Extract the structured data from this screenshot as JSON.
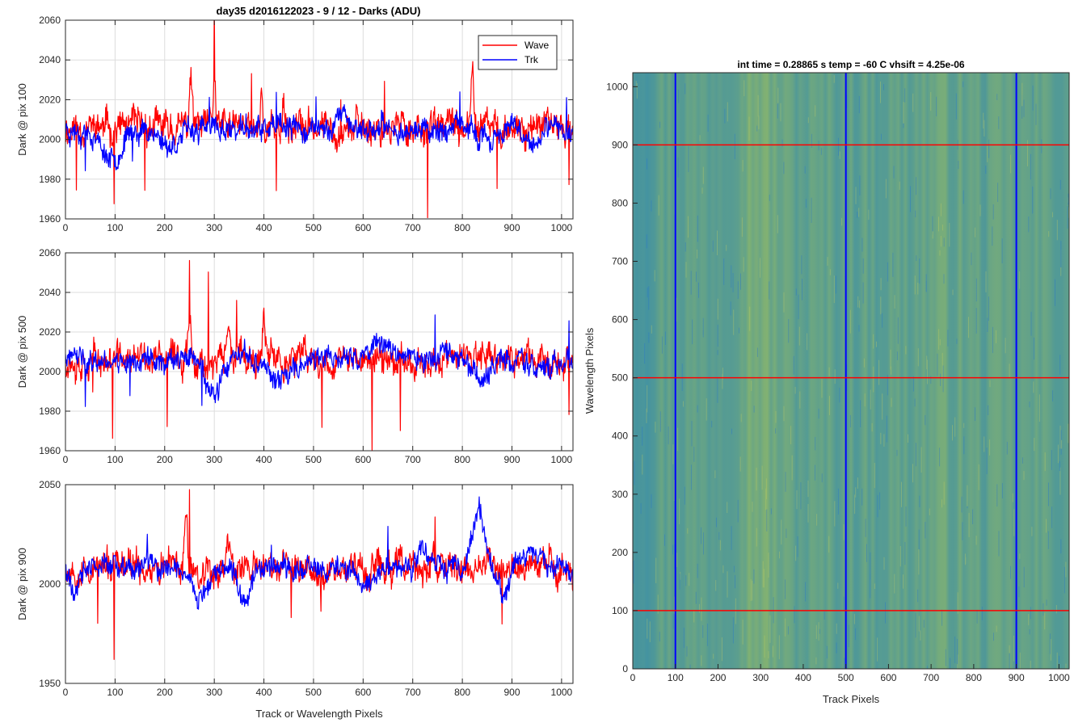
{
  "figure": {
    "suptitle": "day35 d2016122023 - 9 / 12 - Darks (ADU)",
    "shared_xlabel": "Track or Wavelength Pixels"
  },
  "colors": {
    "wave": "#ff0000",
    "trk": "#0000ff",
    "grid": "#dddddd",
    "axis": "#262626"
  },
  "chart_data": [
    {
      "type": "line",
      "ylabel": "Dark @ pix 100",
      "xlim": [
        0,
        1023
      ],
      "ylim": [
        1960,
        2060
      ],
      "xticks": [
        0,
        100,
        200,
        300,
        400,
        500,
        600,
        700,
        800,
        900,
        1000
      ],
      "yticks": [
        1960,
        1980,
        2000,
        2020,
        2040,
        2060
      ],
      "grid": true,
      "legend": {
        "location": "top-right",
        "entries": [
          "Wave",
          "Trk"
        ]
      },
      "series": [
        {
          "name": "Wave",
          "color": "#ff0000",
          "mean": 2006,
          "noise": 7,
          "seed": 11,
          "features": [
            [
              253,
              4,
              26
            ],
            [
              300,
              3,
              30
            ],
            [
              395,
              3,
              18
            ],
            [
              440,
              4,
              14
            ],
            [
              820,
              3,
              30
            ]
          ],
          "spikes": [
            [
              22,
              -30
            ],
            [
              98,
              -32
            ],
            [
              160,
              -36
            ],
            [
              300,
              36
            ],
            [
              375,
              27
            ],
            [
              425,
              -33
            ],
            [
              555,
              26
            ],
            [
              643,
              25
            ],
            [
              730,
              -40
            ],
            [
              870,
              -40
            ],
            [
              1015,
              -24
            ]
          ]
        },
        {
          "name": "Trk",
          "color": "#0000ff",
          "mean": 2005,
          "noise": 5,
          "seed": 23,
          "features": [
            [
              92,
              30,
              -14
            ],
            [
              210,
              25,
              -8
            ],
            [
              560,
              18,
              8
            ],
            [
              850,
              20,
              -6
            ],
            [
              940,
              22,
              -8
            ]
          ],
          "spikes": [
            [
              40,
              -16
            ],
            [
              135,
              -18
            ],
            [
              290,
              16
            ],
            [
              425,
              14
            ],
            [
              505,
              13
            ],
            [
              795,
              15
            ],
            [
              1010,
              20
            ]
          ]
        }
      ]
    },
    {
      "type": "line",
      "ylabel": "Dark @ pix 500",
      "xlim": [
        0,
        1023
      ],
      "ylim": [
        1960,
        2060
      ],
      "xticks": [
        0,
        100,
        200,
        300,
        400,
        500,
        600,
        700,
        800,
        900,
        1000
      ],
      "yticks": [
        1960,
        1980,
        2000,
        2020,
        2040,
        2060
      ],
      "grid": true,
      "series": [
        {
          "name": "Wave",
          "color": "#ff0000",
          "mean": 2006,
          "noise": 7,
          "seed": 37,
          "features": [
            [
              250,
              6,
              20
            ],
            [
              330,
              4,
              18
            ],
            [
              400,
              4,
              16
            ]
          ],
          "spikes": [
            [
              55,
              -25
            ],
            [
              95,
              -38
            ],
            [
              205,
              -34
            ],
            [
              250,
              30
            ],
            [
              288,
              40
            ],
            [
              345,
              30
            ],
            [
              517,
              -32
            ],
            [
              618,
              -38
            ],
            [
              675,
              -35
            ],
            [
              1015,
              -28
            ]
          ]
        },
        {
          "name": "Trk",
          "color": "#0000ff",
          "mean": 2006,
          "noise": 5,
          "seed": 41,
          "features": [
            [
              300,
              20,
              -20
            ],
            [
              430,
              25,
              -12
            ],
            [
              640,
              40,
              8
            ],
            [
              840,
              22,
              -12
            ],
            [
              960,
              25,
              -6
            ]
          ],
          "spikes": [
            [
              40,
              -22
            ],
            [
              130,
              -14
            ],
            [
              275,
              -20
            ],
            [
              745,
              22
            ],
            [
              1015,
              18
            ]
          ]
        }
      ]
    },
    {
      "type": "line",
      "ylabel": "Dark @ pix 900",
      "xlim": [
        0,
        1023
      ],
      "ylim": [
        1950,
        2050
      ],
      "xticks": [
        0,
        100,
        200,
        300,
        400,
        500,
        600,
        700,
        800,
        900,
        1000
      ],
      "yticks": [
        1950,
        2000,
        2050
      ],
      "grid": true,
      "series": [
        {
          "name": "Wave",
          "color": "#ff0000",
          "mean": 2008,
          "noise": 7,
          "seed": 53,
          "features": [
            [
              243,
              4,
              30
            ],
            [
              330,
              5,
              16
            ]
          ],
          "spikes": [
            [
              65,
              -28
            ],
            [
              98,
              -42
            ],
            [
              250,
              40
            ],
            [
              455,
              -25
            ],
            [
              515,
              -20
            ],
            [
              745,
              15
            ],
            [
              880,
              -34
            ]
          ]
        },
        {
          "name": "Trk",
          "color": "#0000ff",
          "mean": 2008,
          "noise": 5,
          "seed": 61,
          "features": [
            [
              20,
              12,
              -14
            ],
            [
              270,
              22,
              -14
            ],
            [
              360,
              16,
              -18
            ],
            [
              605,
              20,
              -10
            ],
            [
              720,
              25,
              6
            ],
            [
              835,
              18,
              30
            ],
            [
              880,
              15,
              -14
            ],
            [
              950,
              45,
              6
            ]
          ],
          "spikes": [
            [
              165,
              14
            ],
            [
              415,
              12
            ],
            [
              650,
              16
            ]
          ]
        }
      ]
    },
    {
      "type": "heatmap",
      "title": "int time = 0.28865 s    temp = -60 C    vhsift = 4.25e-06",
      "xlabel": "Track Pixels",
      "ylabel": "Wavelength Pixels",
      "xlim": [
        0,
        1024
      ],
      "ylim": [
        0,
        1024
      ],
      "xticks": [
        0,
        100,
        200,
        300,
        400,
        500,
        600,
        700,
        800,
        900,
        1000
      ],
      "yticks": [
        0,
        100,
        200,
        300,
        400,
        500,
        600,
        700,
        800,
        900,
        1000
      ],
      "colormap": "parula",
      "vertical_lines": {
        "x": [
          100,
          500,
          900
        ],
        "color": "#0000ff"
      },
      "horizontal_lines": {
        "y": [
          100,
          500,
          900
        ],
        "color": "#ff0000"
      }
    }
  ]
}
